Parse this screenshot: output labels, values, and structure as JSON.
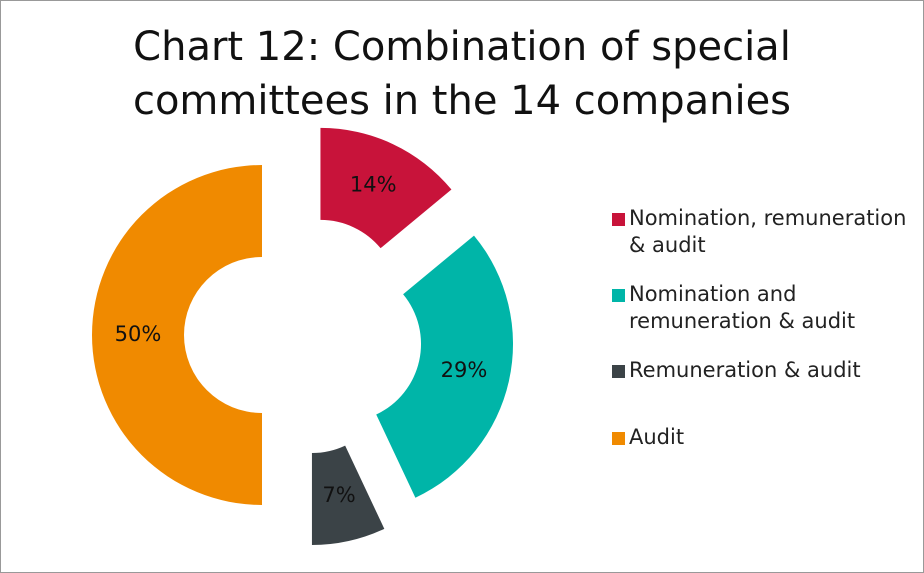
{
  "chart_data": {
    "type": "donut",
    "title": "Chart 12: Combination of special committees in the 14 companies",
    "categories": [
      "Nomination, remuneration & audit",
      "Nomination and remuneration & audit",
      "Remuneration & audit",
      "Audit"
    ],
    "values": [
      14,
      29,
      7,
      50
    ],
    "value_labels": [
      "14%",
      "29%",
      "7%",
      "50%"
    ],
    "colors": [
      "#c8133a",
      "#00b5a8",
      "#3b4347",
      "#f08a00"
    ],
    "legend": "right"
  }
}
